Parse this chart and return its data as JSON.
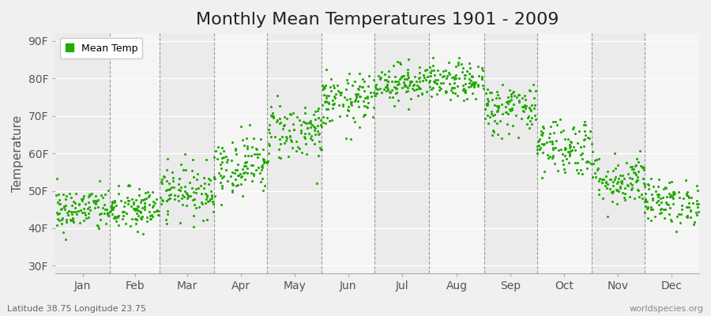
{
  "title": "Monthly Mean Temperatures 1901 - 2009",
  "ylabel": "Temperature",
  "xlabel_labels": [
    "Jan",
    "Feb",
    "Mar",
    "Apr",
    "May",
    "Jun",
    "Jul",
    "Aug",
    "Sep",
    "Oct",
    "Nov",
    "Dec"
  ],
  "ytick_labels": [
    "30F",
    "40F",
    "50F",
    "60F",
    "70F",
    "80F",
    "90F"
  ],
  "ytick_values": [
    30,
    40,
    50,
    60,
    70,
    80,
    90
  ],
  "ylim": [
    28,
    92
  ],
  "dot_color": "#22aa00",
  "legend_label": "Mean Temp",
  "background_color": "#f0f0f0",
  "plot_bg_color_odd": "#e8e8e8",
  "plot_bg_color_even": "#f0f0f0",
  "footer_left": "Latitude 38.75 Longitude 23.75",
  "footer_right": "worldspecies.org",
  "title_fontsize": 16,
  "axis_label_fontsize": 11,
  "tick_fontsize": 10,
  "monthly_mean_temps_F": [
    45,
    45,
    50,
    57,
    66,
    74,
    79,
    79,
    72,
    62,
    53,
    47
  ],
  "monthly_std_F": [
    3.0,
    3.0,
    3.5,
    4.0,
    4.0,
    3.5,
    2.5,
    2.5,
    3.5,
    4.0,
    3.5,
    3.0
  ],
  "n_years": 109,
  "random_seed": 42,
  "dashed_line_color": "#999999",
  "month_days": [
    31,
    28,
    31,
    30,
    31,
    30,
    31,
    31,
    30,
    31,
    30,
    31
  ]
}
